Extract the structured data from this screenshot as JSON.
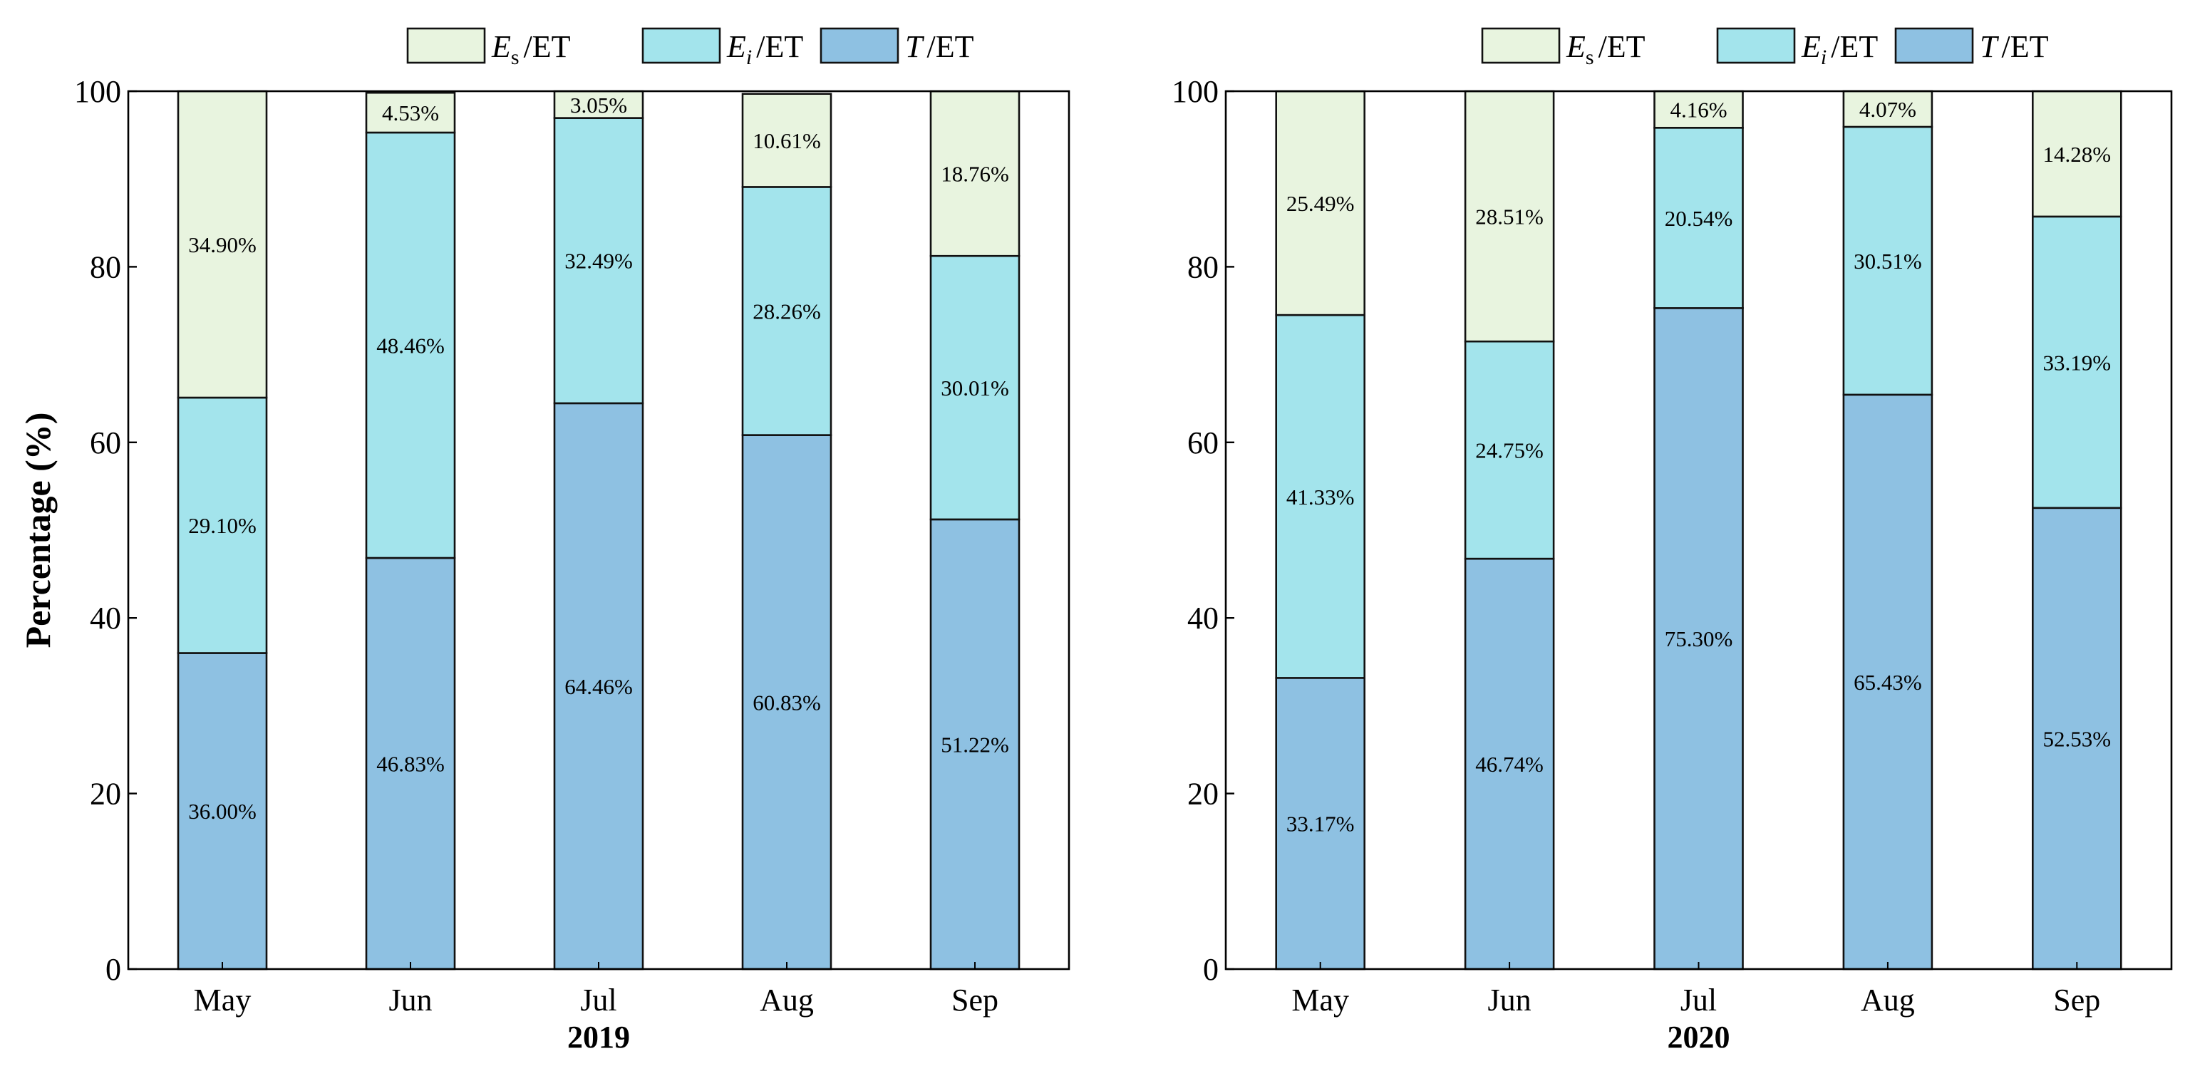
{
  "chart_data": [
    {
      "type": "bar",
      "stacked": true,
      "title": "2019",
      "xlabel": "2019",
      "ylabel": "Percentage (%)",
      "ylim": [
        0,
        100
      ],
      "yticks": [
        "0",
        "20",
        "40",
        "60",
        "80",
        "100"
      ],
      "categories": [
        "May",
        "Jun",
        "Jul",
        "Aug",
        "Sep"
      ],
      "series": [
        {
          "name": "T/ET",
          "color": "#8EC1E2",
          "values": [
            36.0,
            46.83,
            64.46,
            60.83,
            51.22
          ],
          "labels": [
            "36.00%",
            "46.83%",
            "64.46%",
            "60.83%",
            "51.22%"
          ]
        },
        {
          "name": "Ei/ET",
          "color": "#A3E4EC",
          "values": [
            29.1,
            48.46,
            32.49,
            28.26,
            30.01
          ],
          "labels": [
            "29.10%",
            "48.46%",
            "32.49%",
            "28.26%",
            "30.01%"
          ]
        },
        {
          "name": "Es/ET",
          "color": "#E8F4DF",
          "values": [
            34.9,
            4.53,
            3.05,
            10.61,
            18.76
          ],
          "labels": [
            "34.90%",
            "4.53%",
            "3.05%",
            "10.61%",
            "18.76%"
          ]
        }
      ],
      "legend": {
        "position": "top",
        "entries": [
          {
            "main": "E",
            "sub": "s",
            "rest": "/ET",
            "color": "#E8F4DF"
          },
          {
            "main": "E",
            "sub": "i",
            "rest": "/ET",
            "color": "#A3E4EC"
          },
          {
            "main": "T",
            "sub": "",
            "rest": "/ET",
            "color": "#8EC1E2"
          }
        ]
      }
    },
    {
      "type": "bar",
      "stacked": true,
      "title": "2020",
      "xlabel": "2020",
      "ylabel": "",
      "ylim": [
        0,
        100
      ],
      "yticks": [
        "0",
        "20",
        "40",
        "60",
        "80",
        "100"
      ],
      "categories": [
        "May",
        "Jun",
        "Jul",
        "Aug",
        "Sep"
      ],
      "series": [
        {
          "name": "T/ET",
          "color": "#8EC1E2",
          "values": [
            33.17,
            46.74,
            75.3,
            65.43,
            52.53
          ],
          "labels": [
            "33.17%",
            "46.74%",
            "75.30%",
            "65.43%",
            "52.53%"
          ]
        },
        {
          "name": "Ei/ET",
          "color": "#A3E4EC",
          "values": [
            41.33,
            24.75,
            20.54,
            30.51,
            33.19
          ],
          "labels": [
            "41.33%",
            "24.75%",
            "20.54%",
            "30.51%",
            "33.19%"
          ]
        },
        {
          "name": "Es/ET",
          "color": "#E8F4DF",
          "values": [
            25.49,
            28.51,
            4.16,
            4.07,
            14.28
          ],
          "labels": [
            "25.49%",
            "28.51%",
            "4.16%",
            "4.07%",
            "14.28%"
          ]
        }
      ],
      "legend": {
        "position": "top",
        "entries": [
          {
            "main": "E",
            "sub": "s",
            "rest": "/ET",
            "color": "#E8F4DF"
          },
          {
            "main": "E",
            "sub": "i",
            "rest": "/ET",
            "color": "#A3E4EC"
          },
          {
            "main": "T",
            "sub": "",
            "rest": "/ET",
            "color": "#8EC1E2"
          }
        ]
      }
    }
  ]
}
